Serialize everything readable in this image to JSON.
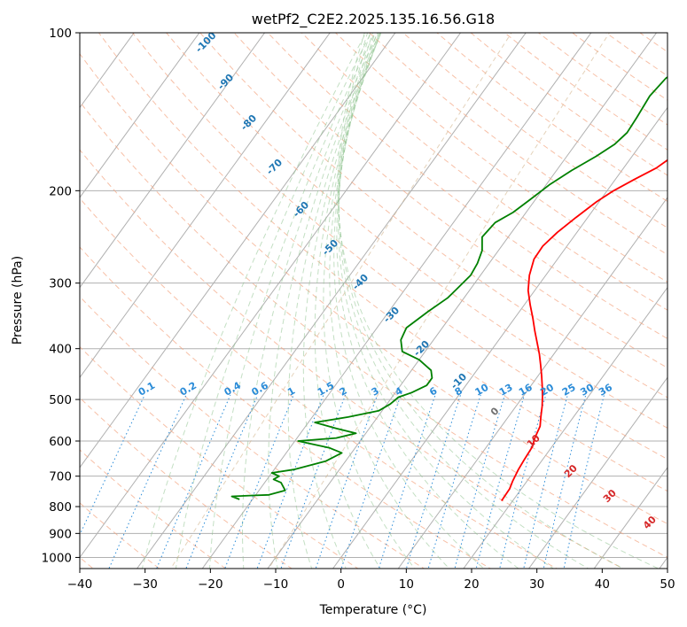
{
  "chart_data": {
    "type": "line",
    "title": "wetPf2_C2E2.2025.135.16.56.G18",
    "xlabel": "Temperature (°C)",
    "ylabel": "Pressure (hPa)",
    "xlim": [
      -40,
      50
    ],
    "ylim": [
      1050,
      100
    ],
    "y_scale": "log",
    "x_ticks": [
      -40,
      -30,
      -20,
      -10,
      0,
      10,
      20,
      30,
      40,
      50
    ],
    "y_ticks": [
      1000,
      900,
      800,
      700,
      600,
      500,
      400,
      300,
      200,
      100
    ],
    "grid": true,
    "series": [
      {
        "color": "#ff0000",
        "points": [
          [
            18.3,
            780
          ],
          [
            18.2,
            740
          ],
          [
            17.8,
            715
          ],
          [
            17.4,
            680
          ],
          [
            17.2,
            650
          ],
          [
            17.0,
            615
          ],
          [
            16.4,
            592
          ],
          [
            15.9,
            562
          ],
          [
            15.0,
            540
          ],
          [
            14.0,
            515
          ],
          [
            12.9,
            492
          ],
          [
            11.8,
            472
          ],
          [
            10.5,
            450
          ],
          [
            9.2,
            430
          ],
          [
            7.8,
            410
          ],
          [
            6.2,
            390
          ],
          [
            4.5,
            370
          ],
          [
            2.8,
            350
          ],
          [
            0.9,
            330
          ],
          [
            -1.0,
            310
          ],
          [
            -2.5,
            290
          ],
          [
            -3.6,
            270
          ],
          [
            -3.7,
            255
          ],
          [
            -3.0,
            240
          ],
          [
            -1.8,
            225
          ],
          [
            -0.4,
            210
          ],
          [
            1.0,
            200
          ],
          [
            3.0,
            190
          ],
          [
            5.0,
            181
          ],
          [
            6.5,
            170
          ],
          [
            7.2,
            160
          ],
          [
            7.7,
            150
          ],
          [
            8.6,
            140
          ],
          [
            9.6,
            130
          ],
          [
            10.6,
            120
          ],
          [
            11.4,
            112
          ],
          [
            11.9,
            105
          ],
          [
            12.2,
            100
          ]
        ]
      },
      {
        "color": "#008000",
        "points": [
          [
            -22.0,
            775
          ],
          [
            -23.5,
            765
          ],
          [
            -20.5,
            762
          ],
          [
            -18.0,
            760
          ],
          [
            -16.0,
            745
          ],
          [
            -17.5,
            720
          ],
          [
            -19.0,
            710
          ],
          [
            -18.5,
            700
          ],
          [
            -20.0,
            690
          ],
          [
            -17.0,
            680
          ],
          [
            -13.0,
            655
          ],
          [
            -11.5,
            632
          ],
          [
            -14.0,
            618
          ],
          [
            -19.5,
            600
          ],
          [
            -14.0,
            592
          ],
          [
            -11.5,
            580
          ],
          [
            -15.0,
            568
          ],
          [
            -19.0,
            553
          ],
          [
            -14.5,
            540
          ],
          [
            -10.5,
            525
          ],
          [
            -9.5,
            510
          ],
          [
            -9.0,
            495
          ],
          [
            -7.5,
            485
          ],
          [
            -6.0,
            470
          ],
          [
            -6.0,
            455
          ],
          [
            -7.0,
            440
          ],
          [
            -10.0,
            420
          ],
          [
            -13.5,
            405
          ],
          [
            -15.0,
            385
          ],
          [
            -15.5,
            365
          ],
          [
            -14.0,
            340
          ],
          [
            -12.5,
            320
          ],
          [
            -12.0,
            305
          ],
          [
            -11.5,
            290
          ],
          [
            -11.8,
            275
          ],
          [
            -12.5,
            260
          ],
          [
            -14.0,
            245
          ],
          [
            -13.6,
            230
          ],
          [
            -12.0,
            220
          ],
          [
            -10.8,
            208
          ],
          [
            -9.5,
            195
          ],
          [
            -7.7,
            183
          ],
          [
            -5.5,
            172
          ],
          [
            -4.0,
            163
          ],
          [
            -3.4,
            155
          ],
          [
            -3.6,
            145
          ],
          [
            -4.0,
            132
          ],
          [
            -3.5,
            122
          ],
          [
            -2.0,
            115
          ],
          [
            -0.5,
            108
          ],
          [
            0.5,
            102
          ],
          [
            1.0,
            100
          ]
        ]
      }
    ],
    "dry_adiabat_labels": [
      "-100",
      "-90",
      "-80",
      "-70",
      "-60",
      "-50",
      "-40",
      "-30",
      "-20",
      "-10"
    ],
    "moist_adiabat_labels": [
      "0",
      "10",
      "20",
      "30",
      "40"
    ],
    "mixing_ratio_labels": [
      "0.1",
      "0.2",
      "0.4",
      "0.6",
      "1",
      "1.5",
      "2",
      "3",
      "4",
      "6",
      "8",
      "10",
      "13",
      "16",
      "20",
      "25",
      "30",
      "36"
    ]
  }
}
